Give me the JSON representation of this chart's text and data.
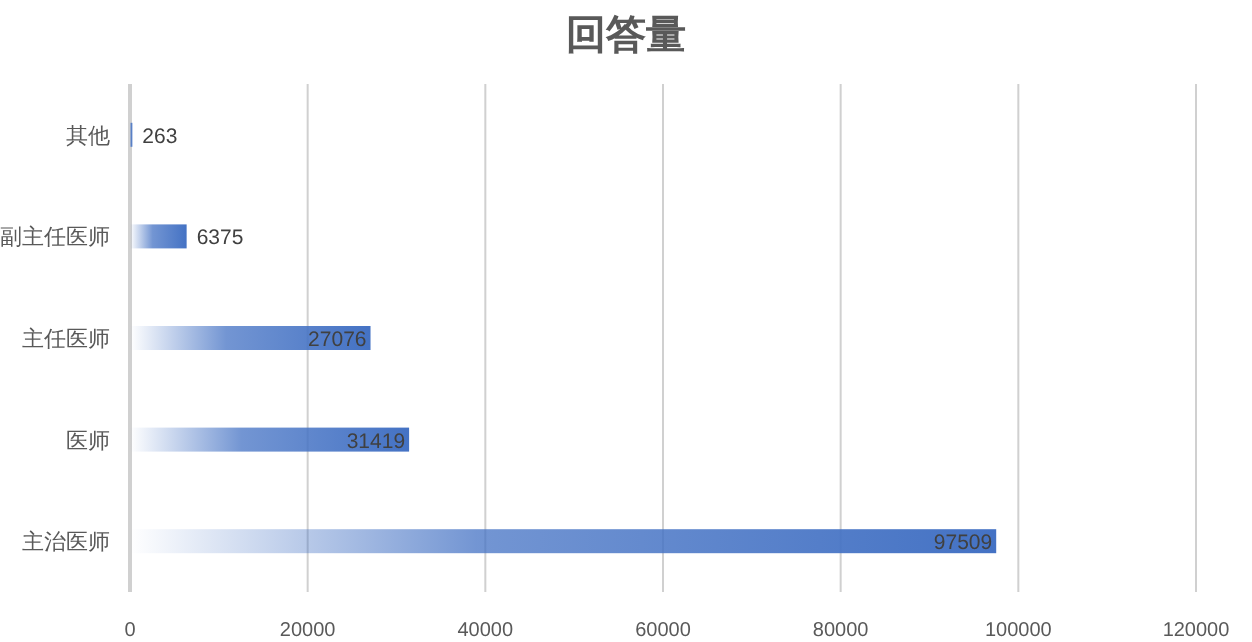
{
  "chart_data": {
    "type": "bar",
    "orientation": "horizontal",
    "title": "回答量",
    "categories": [
      "其他",
      "副主任医师",
      "主任医师",
      "医师",
      "主治医师"
    ],
    "values": [
      263,
      6375,
      27076,
      31419,
      97509
    ],
    "color": "#4472c4",
    "xlim": [
      0,
      120000
    ],
    "xticks": [
      0,
      20000,
      40000,
      60000,
      80000,
      100000,
      120000
    ],
    "grid": "x",
    "data_labels": true
  }
}
